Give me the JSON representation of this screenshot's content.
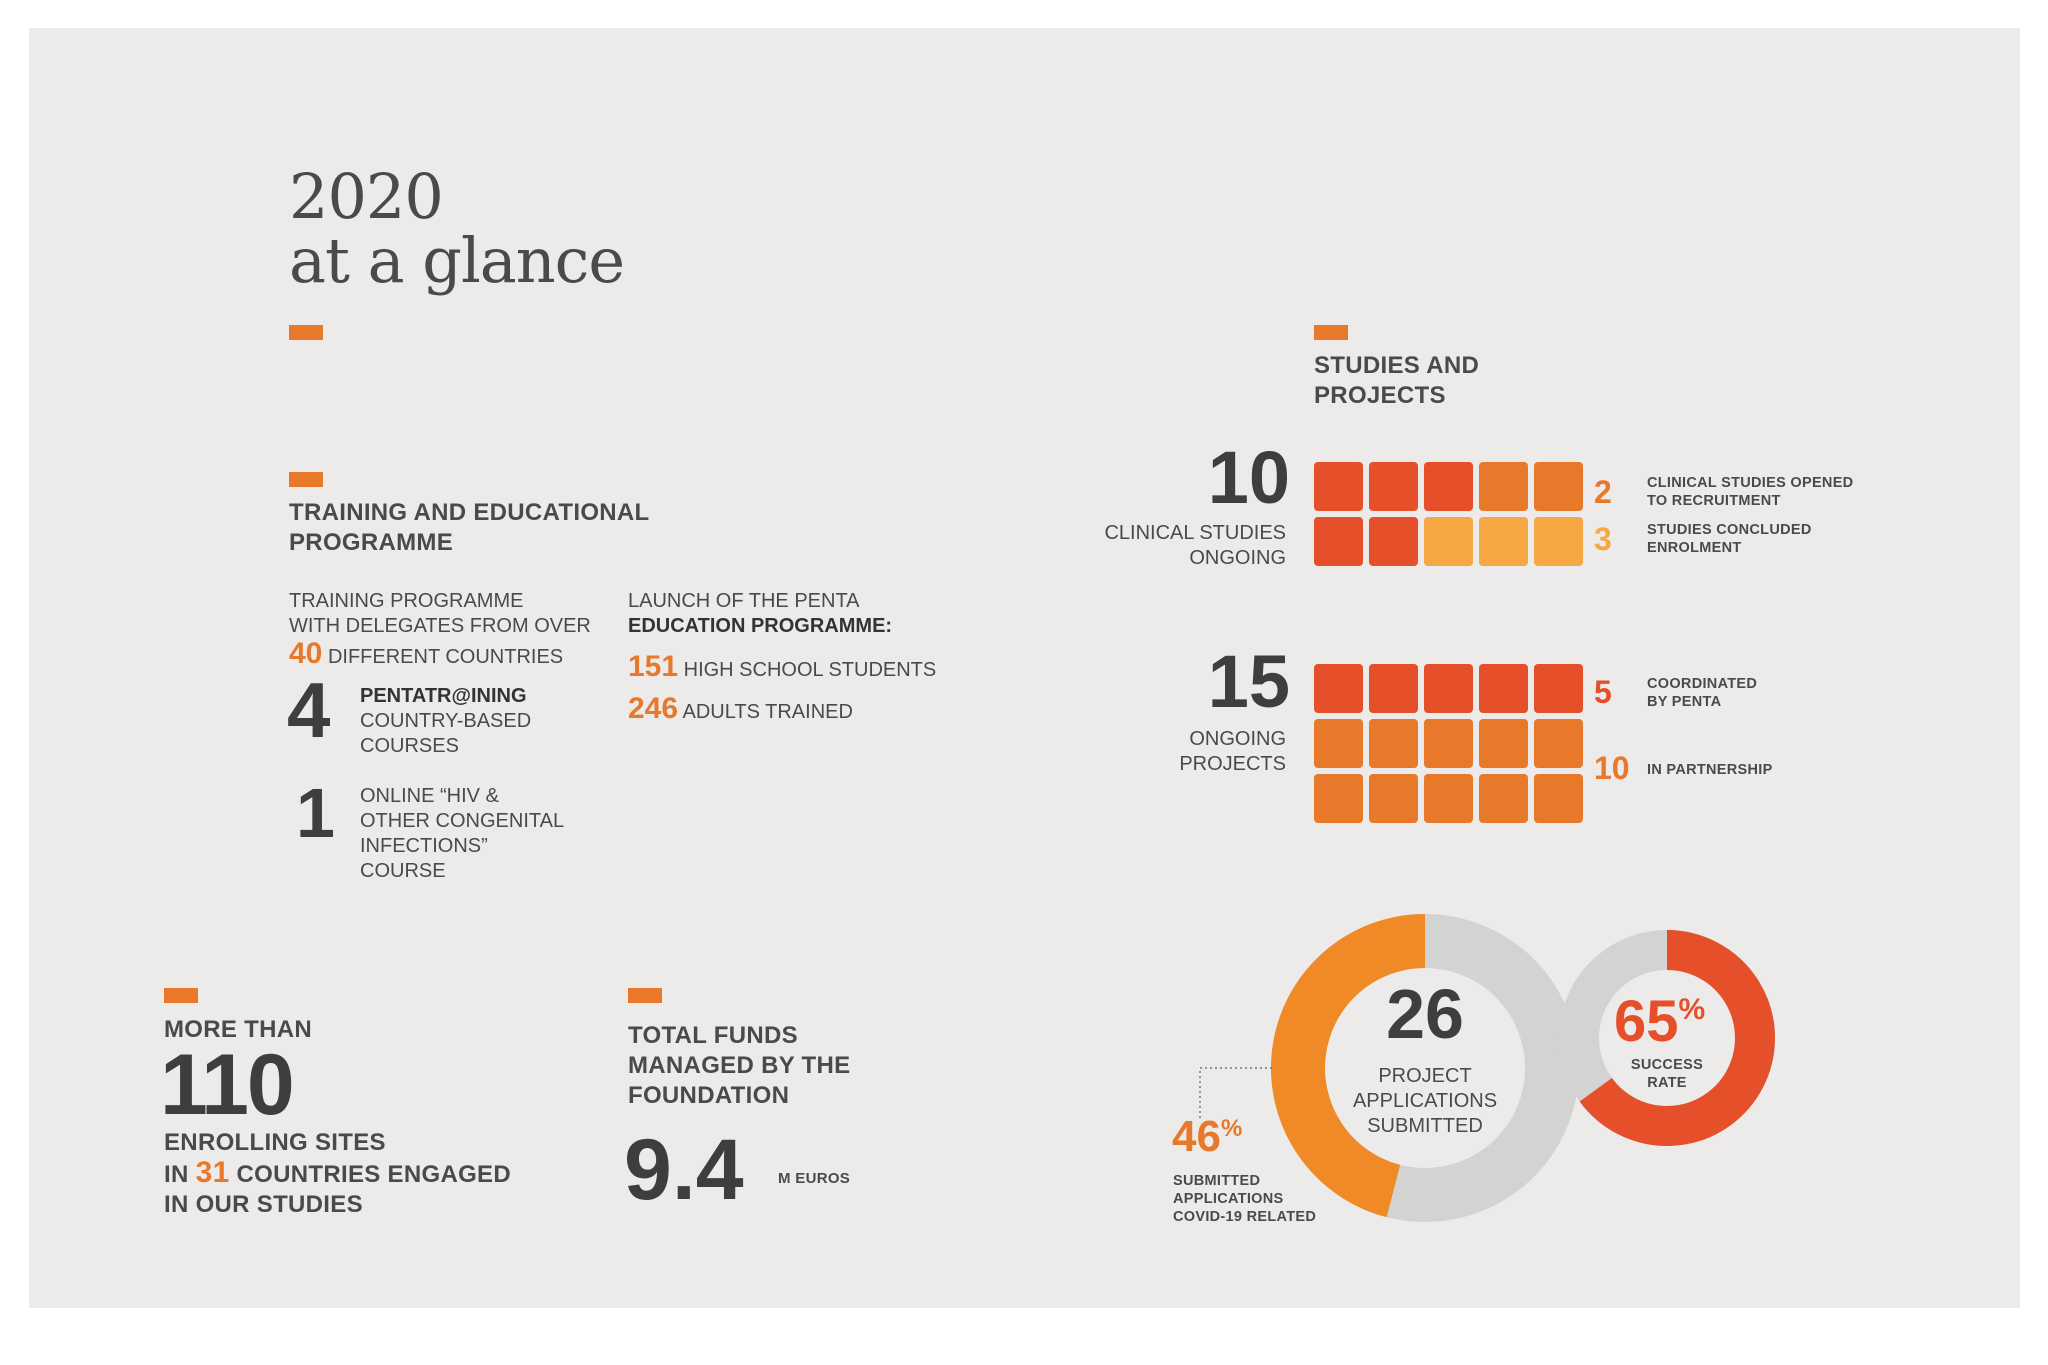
{
  "title": {
    "line1": "2020",
    "line2": "at a glance"
  },
  "training": {
    "heading_l1": "TRAINING AND EDUCATIONAL",
    "heading_l2": "PROGRAMME",
    "prog_l1": "TRAINING PROGRAMME",
    "prog_l2": "WITH DELEGATES FROM OVER",
    "prog_num": "40",
    "prog_l3": "DIFFERENT COUNTRIES",
    "courses_num": "4",
    "courses_bold": "PENTATR@INING",
    "courses_l2": "COUNTRY-BASED",
    "courses_l3": "COURSES",
    "online_num": "1",
    "online_l1": "ONLINE “HIV &",
    "online_l2": "OTHER CONGENITAL",
    "online_l3": "INFECTIONS”",
    "online_l4": "COURSE",
    "launch_l1": "LAUNCH OF THE PENTA",
    "launch_l2": "EDUCATION PROGRAMME:",
    "hs_num": "151",
    "hs_label": "HIGH SCHOOL STUDENTS",
    "adults_num": "246",
    "adults_label": "ADULTS TRAINED"
  },
  "sites": {
    "l1": "MORE THAN",
    "num": "110",
    "l2": "ENROLLING SITES",
    "l3a": "IN",
    "countries": "31",
    "l3b": "COUNTRIES ENGAGED",
    "l4": "IN OUR STUDIES"
  },
  "funds": {
    "l1": "TOTAL FUNDS",
    "l2": "MANAGED BY THE",
    "l3": "FOUNDATION",
    "num": "9.4",
    "unit": "M EUROS"
  },
  "studies": {
    "heading_l1": "STUDIES AND",
    "heading_l2": "PROJECTS",
    "clinical_num": "10",
    "clinical_l1": "CLINICAL STUDIES",
    "clinical_l2": "ONGOING",
    "opened_num": "2",
    "opened_l1": "CLINICAL STUDIES OPENED",
    "opened_l2": "TO RECRUITMENT",
    "concluded_num": "3",
    "concluded_l1": "STUDIES CONCLUDED",
    "concluded_l2": "ENROLMENT",
    "projects_num": "15",
    "projects_l1": "ONGOING",
    "projects_l2": "PROJECTS",
    "coord_num": "5",
    "coord_l1": "COORDINATED",
    "coord_l2": "BY PENTA",
    "partner_num": "10",
    "partner_label": "IN PARTNERSHIP"
  },
  "applications": {
    "num": "26",
    "l1": "PROJECT",
    "l2": "APPLICATIONS",
    "l3": "SUBMITTED",
    "covid_pct": "46",
    "covid_fraction": 0.46,
    "pct_sign": "%",
    "covid_l1": "SUBMITTED",
    "covid_l2": "APPLICATIONS",
    "covid_l3": "COVID-19 RELATED",
    "success_pct": "65",
    "success_fraction": 0.65,
    "success_l1": "SUCCESS",
    "success_l2": "RATE"
  },
  "colors": {
    "accent": "#e8792b",
    "red": "#e5502a",
    "light_orange": "#f5a844",
    "ring_orange": "#ef8a26",
    "ring_grey": "#d3d3d1",
    "panel": "#ecebea"
  }
}
